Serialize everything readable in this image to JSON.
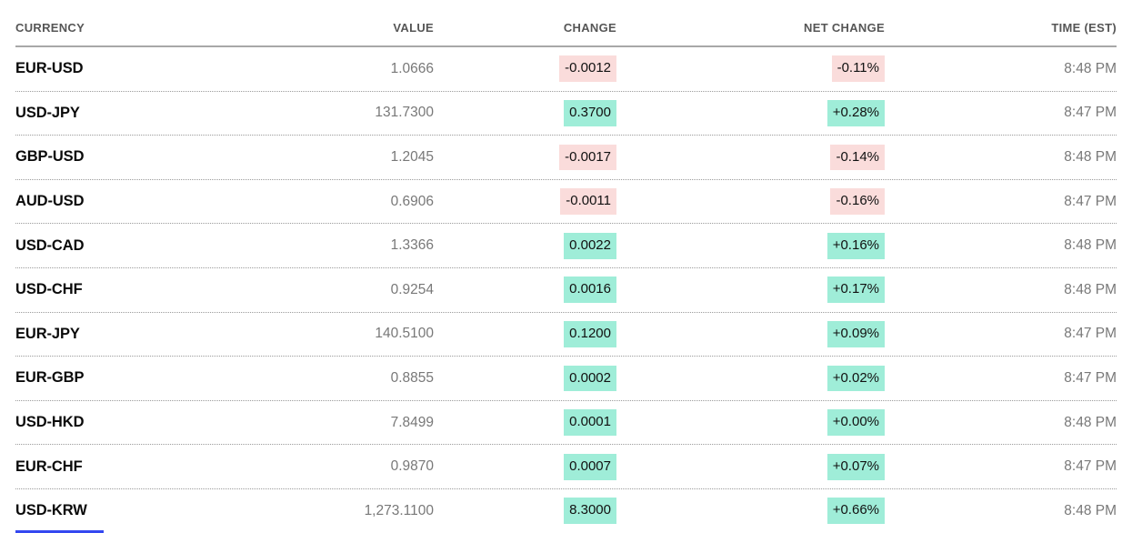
{
  "table": {
    "columns": [
      "CURRENCY",
      "VALUE",
      "CHANGE",
      "NET CHANGE",
      "TIME (EST)"
    ],
    "rows": [
      {
        "pair": "EUR-USD",
        "value": "1.0666",
        "change": "-0.0012",
        "net_change": "-0.11%",
        "time": "8:48 PM",
        "direction": "down"
      },
      {
        "pair": "USD-JPY",
        "value": "131.7300",
        "change": "0.3700",
        "net_change": "+0.28%",
        "time": "8:47 PM",
        "direction": "up"
      },
      {
        "pair": "GBP-USD",
        "value": "1.2045",
        "change": "-0.0017",
        "net_change": "-0.14%",
        "time": "8:48 PM",
        "direction": "down"
      },
      {
        "pair": "AUD-USD",
        "value": "0.6906",
        "change": "-0.0011",
        "net_change": "-0.16%",
        "time": "8:47 PM",
        "direction": "down"
      },
      {
        "pair": "USD-CAD",
        "value": "1.3366",
        "change": "0.0022",
        "net_change": "+0.16%",
        "time": "8:48 PM",
        "direction": "up"
      },
      {
        "pair": "USD-CHF",
        "value": "0.9254",
        "change": "0.0016",
        "net_change": "+0.17%",
        "time": "8:48 PM",
        "direction": "up"
      },
      {
        "pair": "EUR-JPY",
        "value": "140.5100",
        "change": "0.1200",
        "net_change": "+0.09%",
        "time": "8:47 PM",
        "direction": "up"
      },
      {
        "pair": "EUR-GBP",
        "value": "0.8855",
        "change": "0.0002",
        "net_change": "+0.02%",
        "time": "8:47 PM",
        "direction": "up"
      },
      {
        "pair": "USD-HKD",
        "value": "7.8499",
        "change": "0.0001",
        "net_change": "+0.00%",
        "time": "8:48 PM",
        "direction": "up"
      },
      {
        "pair": "EUR-CHF",
        "value": "0.9870",
        "change": "0.0007",
        "net_change": "+0.07%",
        "time": "8:47 PM",
        "direction": "up"
      },
      {
        "pair": "USD-KRW",
        "value": "1,273.1100",
        "change": "8.3000",
        "net_change": "+0.66%",
        "time": "8:48 PM",
        "direction": "up"
      }
    ]
  },
  "colors": {
    "positive_bg": "#9FEDD8",
    "negative_bg": "#FADCDB",
    "accent_line": "#3448F0"
  }
}
